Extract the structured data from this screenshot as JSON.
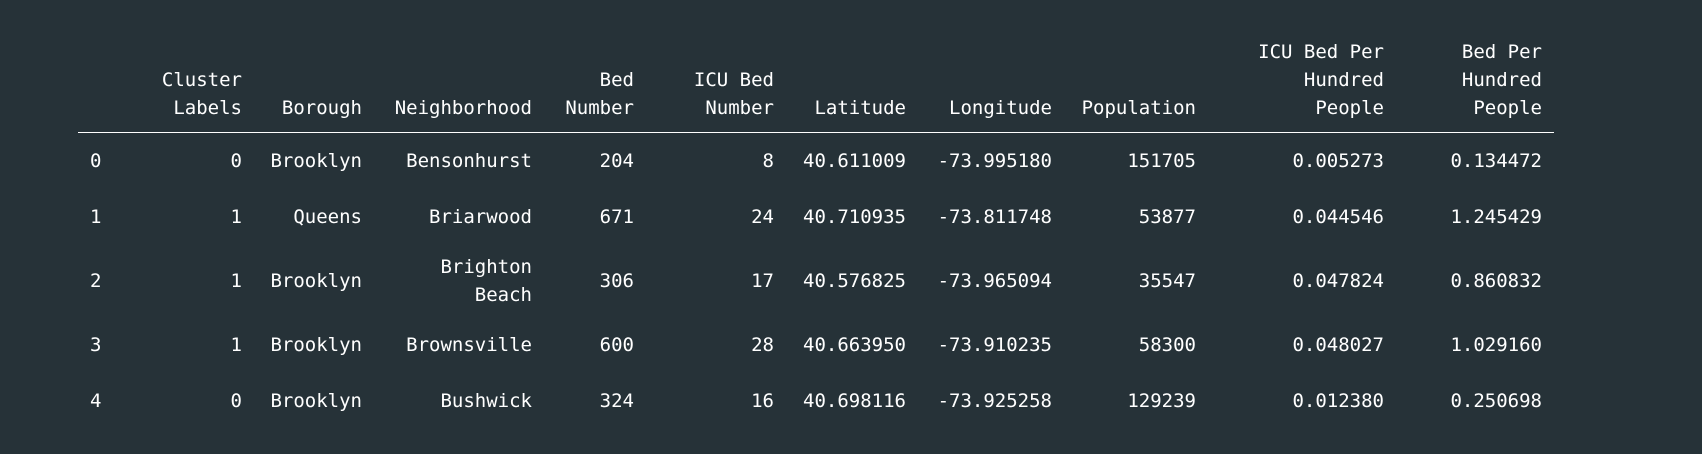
{
  "table": {
    "columns": [
      "",
      "Cluster\nLabels",
      "Borough",
      "Neighborhood",
      "Bed\nNumber",
      "ICU Bed\nNumber",
      "Latitude",
      "Longitude",
      "Population",
      "ICU Bed Per\nHundred\nPeople",
      "Bed Per\nHundred\nPeople"
    ],
    "rows": [
      [
        "0",
        "0",
        "Brooklyn",
        "Bensonhurst",
        "204",
        "8",
        "40.611009",
        "-73.995180",
        "151705",
        "0.005273",
        "0.134472"
      ],
      [
        "1",
        "1",
        "Queens",
        "Briarwood",
        "671",
        "24",
        "40.710935",
        "-73.811748",
        "53877",
        "0.044546",
        "1.245429"
      ],
      [
        "2",
        "1",
        "Brooklyn",
        "Brighton\nBeach",
        "306",
        "17",
        "40.576825",
        "-73.965094",
        "35547",
        "0.047824",
        "0.860832"
      ],
      [
        "3",
        "1",
        "Brooklyn",
        "Brownsville",
        "600",
        "28",
        "40.663950",
        "-73.910235",
        "58300",
        "0.048027",
        "1.029160"
      ],
      [
        "4",
        "0",
        "Brooklyn",
        "Bushwick",
        "324",
        "16",
        "40.698116",
        "-73.925258",
        "129239",
        "0.012380",
        "0.250698"
      ]
    ]
  }
}
